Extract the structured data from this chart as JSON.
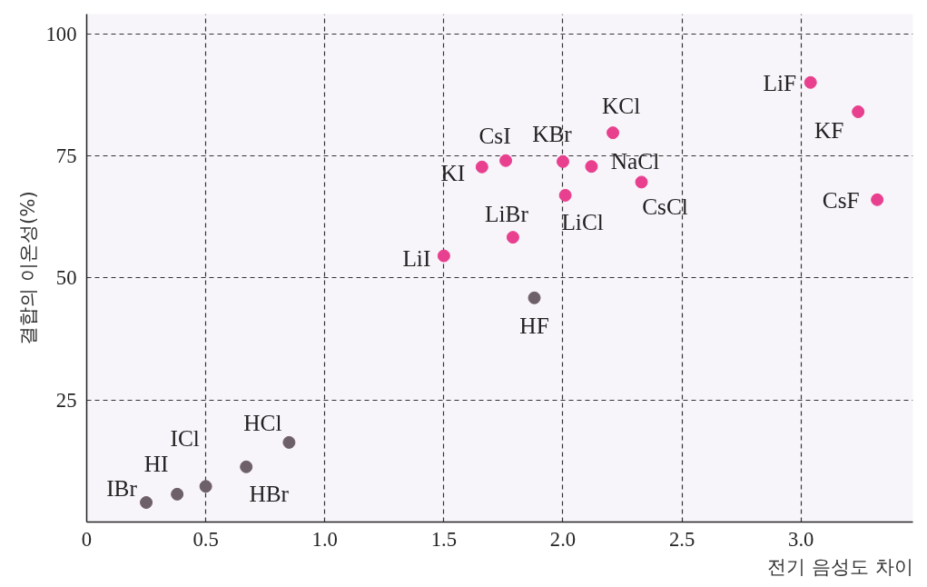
{
  "chart_data": {
    "type": "scatter",
    "xlabel": "전기 음성도 차이",
    "ylabel": "결합의 이온성(%)",
    "xlim": [
      0,
      3.47
    ],
    "ylim": [
      0,
      104
    ],
    "xticks": [
      {
        "value": 0,
        "label": "0"
      },
      0.5,
      {
        "value": 1.0,
        "label": "1.0"
      },
      1.5,
      {
        "value": 2.0,
        "label": "2.0"
      },
      2.5,
      {
        "value": 3.0,
        "label": "3.0"
      }
    ],
    "yticks": [
      25,
      50,
      75,
      100
    ],
    "grid": true,
    "marker": "circle",
    "series": [
      {
        "color": "#e8408f",
        "x": [
          3.04,
          3.24,
          3.32,
          2.21,
          2.0,
          2.12,
          2.33,
          2.01,
          1.76,
          1.66,
          1.79,
          1.5
        ],
        "values": [
          90,
          84,
          66,
          79.7,
          73.8,
          72.8,
          69.6,
          66.9,
          74,
          72.7,
          58.3,
          54.5
        ]
      },
      {
        "color": "#6e6068",
        "x": [
          1.88,
          0.85,
          0.67,
          0.5,
          0.38,
          0.25
        ],
        "values": [
          45.9,
          16.3,
          11.3,
          7.3,
          5.7,
          4.0
        ]
      }
    ],
    "annotations": [
      {
        "text": "LiF",
        "x": 3.04,
        "y": 90
      },
      {
        "text": "KF",
        "x": 3.24,
        "y": 84
      },
      {
        "text": "CsF",
        "x": 3.32,
        "y": 66
      },
      {
        "text": "KCl",
        "x": 2.21,
        "y": 79.7
      },
      {
        "text": "KBr",
        "x": 2.0,
        "y": 73.8
      },
      {
        "text": "NaCl",
        "x": 2.12,
        "y": 72.8
      },
      {
        "text": "CsCl",
        "x": 2.33,
        "y": 69.6
      },
      {
        "text": "LiCl",
        "x": 2.01,
        "y": 66.9
      },
      {
        "text": "CsI",
        "x": 1.76,
        "y": 74
      },
      {
        "text": "KI",
        "x": 1.66,
        "y": 72.7
      },
      {
        "text": "LiBr",
        "x": 1.79,
        "y": 58.3
      },
      {
        "text": "LiI",
        "x": 1.5,
        "y": 54.5
      },
      {
        "text": "HF",
        "x": 1.88,
        "y": 45.9
      },
      {
        "text": "HCl",
        "x": 0.85,
        "y": 16.3
      },
      {
        "text": "HBr",
        "x": 0.67,
        "y": 11.3
      },
      {
        "text": "ICl",
        "x": 0.5,
        "y": 7.3
      },
      {
        "text": "HI",
        "x": 0.38,
        "y": 5.7
      },
      {
        "text": "IBr",
        "x": 0.25,
        "y": 4.0
      }
    ]
  }
}
